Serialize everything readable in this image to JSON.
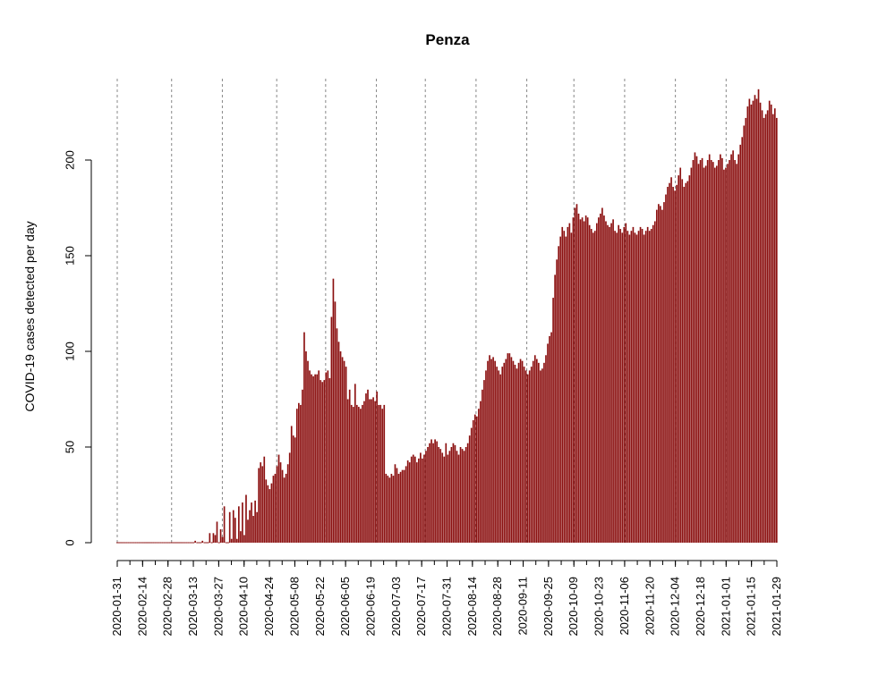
{
  "chart_data": {
    "type": "bar",
    "title": "Penza",
    "xlabel": "",
    "ylabel": "COVID-19 cases detected per day",
    "x_start": "2020-01-31",
    "x_end": "2021-01-29",
    "x_tick_labels": [
      "2020-01-31",
      "2020-02-14",
      "2020-02-28",
      "2020-03-13",
      "2020-03-27",
      "2020-04-10",
      "2020-04-24",
      "2020-05-08",
      "2020-05-22",
      "2020-06-05",
      "2020-06-19",
      "2020-07-03",
      "2020-07-17",
      "2020-07-31",
      "2020-08-14",
      "2020-08-28",
      "2020-09-11",
      "2020-09-25",
      "2020-10-09",
      "2020-10-23",
      "2020-11-06",
      "2020-11-20",
      "2020-12-04",
      "2020-12-18",
      "2021-01-01",
      "2021-01-15",
      "2021-01-29"
    ],
    "gridline_dates": [
      "2020-01-31",
      "2020-03-01",
      "2020-03-29",
      "2020-04-28",
      "2020-05-25",
      "2020-06-22",
      "2020-07-19",
      "2020-08-16",
      "2020-09-13",
      "2020-10-09",
      "2020-11-06",
      "2020-12-04",
      "2021-01-01"
    ],
    "y_ticks": [
      0,
      50,
      100,
      150,
      200
    ],
    "ylim": [
      0,
      240
    ],
    "grid": "vertical dashed",
    "bar_color": "#8B1010",
    "values": [
      0,
      0,
      0,
      0,
      0,
      0,
      0,
      0,
      0,
      0,
      0,
      0,
      0,
      0,
      0,
      0,
      0,
      0,
      0,
      0,
      0,
      0,
      0,
      0,
      0,
      0,
      0,
      0,
      0,
      0,
      0,
      0,
      0,
      0,
      0,
      0,
      0,
      0,
      0,
      0,
      0,
      0,
      0,
      1,
      0,
      0,
      0,
      1,
      0,
      0,
      0,
      5,
      0,
      5,
      4,
      11,
      0,
      7,
      3,
      19,
      0,
      0,
      16,
      2,
      17,
      13,
      2,
      19,
      6,
      21,
      4,
      25,
      12,
      17,
      21,
      14,
      22,
      16,
      39,
      42,
      40,
      45,
      33,
      30,
      28,
      31,
      35,
      36,
      40,
      46,
      42,
      38,
      34,
      36,
      41,
      47,
      61,
      56,
      55,
      70,
      73,
      72,
      80,
      110,
      100,
      95,
      90,
      88,
      87,
      88,
      88,
      90,
      85,
      84,
      85,
      89,
      90,
      86,
      118,
      138,
      126,
      112,
      105,
      100,
      97,
      95,
      92,
      75,
      80,
      72,
      71,
      83,
      72,
      71,
      70,
      72,
      74,
      78,
      80,
      75,
      75,
      76,
      74,
      79,
      72,
      72,
      70,
      72,
      36,
      35,
      34,
      36,
      35,
      41,
      39,
      36,
      37,
      38,
      38,
      40,
      43,
      42,
      45,
      46,
      45,
      42,
      44,
      47,
      44,
      46,
      48,
      50,
      52,
      54,
      52,
      54,
      53,
      50,
      49,
      47,
      45,
      52,
      46,
      48,
      50,
      52,
      51,
      48,
      46,
      50,
      49,
      48,
      50,
      52,
      56,
      60,
      64,
      67,
      66,
      70,
      74,
      80,
      85,
      90,
      95,
      98,
      96,
      97,
      95,
      92,
      90,
      88,
      92,
      94,
      96,
      99,
      99,
      97,
      95,
      93,
      91,
      94,
      96,
      95,
      92,
      90,
      88,
      90,
      92,
      95,
      98,
      96,
      94,
      90,
      91,
      94,
      98,
      104,
      108,
      110,
      128,
      140,
      148,
      155,
      160,
      165,
      163,
      160,
      165,
      167,
      162,
      170,
      175,
      177,
      172,
      169,
      170,
      168,
      171,
      170,
      166,
      164,
      162,
      163,
      167,
      170,
      172,
      175,
      171,
      168,
      166,
      165,
      167,
      169,
      163,
      162,
      166,
      164,
      162,
      165,
      167,
      163,
      161,
      163,
      165,
      162,
      161,
      163,
      165,
      164,
      161,
      163,
      165,
      163,
      164,
      166,
      168,
      174,
      177,
      176,
      174,
      178,
      182,
      186,
      188,
      191,
      186,
      184,
      187,
      192,
      196,
      190,
      186,
      188,
      189,
      192,
      196,
      200,
      204,
      202,
      198,
      200,
      201,
      196,
      197,
      200,
      203,
      200,
      199,
      196,
      197,
      200,
      203,
      201,
      195,
      196,
      198,
      200,
      203,
      205,
      200,
      198,
      203,
      208,
      212,
      218,
      222,
      228,
      232,
      229,
      231,
      234,
      232,
      237,
      230,
      226,
      222,
      224,
      226,
      231,
      229,
      224,
      227,
      222
    ]
  }
}
